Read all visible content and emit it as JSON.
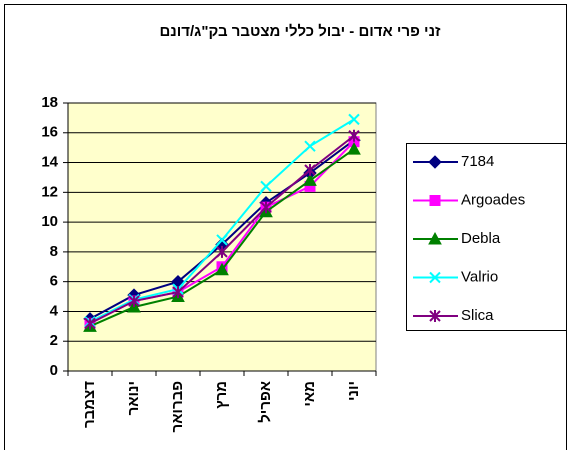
{
  "chart_data": {
    "type": "line",
    "title": "זני פרי אדום - יבול כללי מצטבר בק\"ג/דונם",
    "categories": [
      "דצמבר",
      "ינואר",
      "פברואר",
      "מרץ",
      "אפריל",
      "מאי",
      "יוני"
    ],
    "series": [
      {
        "name": "7184",
        "color": "#000080",
        "marker": "diamond",
        "values": [
          3.5,
          5.1,
          6.0,
          8.5,
          11.3,
          13.3,
          15.5
        ]
      },
      {
        "name": "Argoades",
        "color": "#FF00FF",
        "marker": "square",
        "values": [
          3.2,
          4.7,
          5.3,
          7.0,
          11.0,
          12.4,
          15.4
        ]
      },
      {
        "name": "Debla",
        "color": "#008000",
        "marker": "triangle",
        "values": [
          3.0,
          4.3,
          5.0,
          6.8,
          10.7,
          12.8,
          14.9
        ]
      },
      {
        "name": "Valrio",
        "color": "#00FFFF",
        "marker": "x",
        "values": [
          3.3,
          4.8,
          5.5,
          8.8,
          12.4,
          15.1,
          16.9
        ]
      },
      {
        "name": "Slica",
        "color": "#800080",
        "marker": "star",
        "values": [
          3.2,
          4.7,
          5.3,
          8.0,
          11.0,
          13.5,
          15.8
        ]
      }
    ],
    "ylim": [
      0,
      18
    ],
    "yticks": [
      0,
      2,
      4,
      6,
      8,
      10,
      12,
      14,
      16,
      18
    ],
    "grid": true,
    "legend": "right"
  }
}
